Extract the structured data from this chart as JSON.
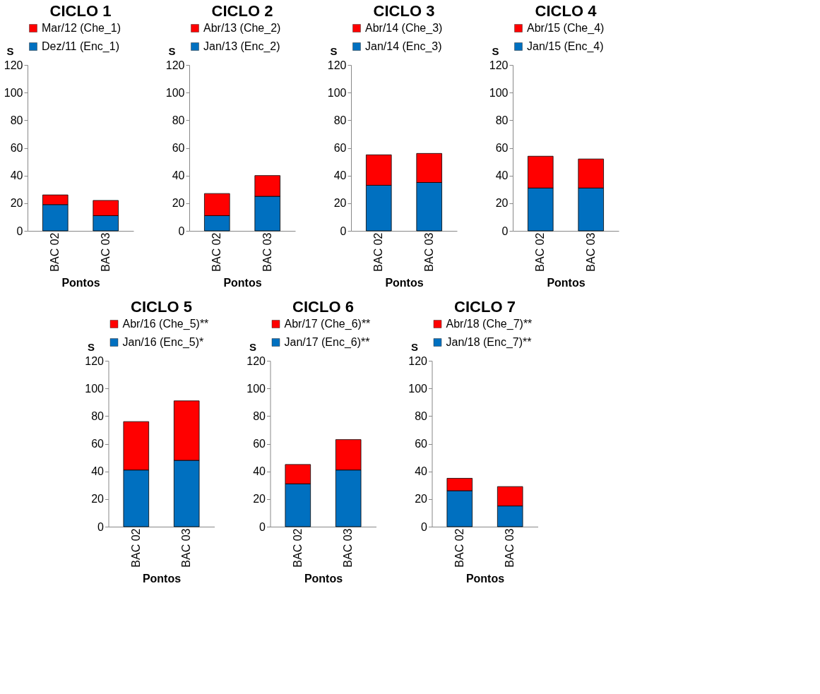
{
  "chart_data": [
    {
      "type": "bar",
      "stacked": true,
      "title": "CICLO 1",
      "xlabel": "Pontos",
      "ylabel": "S",
      "categories": [
        "BAC 02",
        "BAC 03"
      ],
      "ylim": [
        0,
        120
      ],
      "yticks": [
        0,
        20,
        40,
        60,
        80,
        100,
        120
      ],
      "grid": false,
      "legend": "top",
      "series": [
        {
          "name": "Dez/11 (Enc_1)",
          "color": "#0070c0",
          "values": [
            19,
            11
          ]
        },
        {
          "name": "Mar/12 (Che_1)",
          "color": "#ff0000",
          "values": [
            7,
            11
          ]
        }
      ]
    },
    {
      "type": "bar",
      "stacked": true,
      "title": "CICLO 2",
      "xlabel": "Pontos",
      "ylabel": "S",
      "categories": [
        "BAC 02",
        "BAC 03"
      ],
      "ylim": [
        0,
        120
      ],
      "yticks": [
        0,
        20,
        40,
        60,
        80,
        100,
        120
      ],
      "grid": false,
      "legend": "top",
      "series": [
        {
          "name": "Jan/13 (Enc_2)",
          "color": "#0070c0",
          "values": [
            11,
            25
          ]
        },
        {
          "name": "Abr/13 (Che_2)",
          "color": "#ff0000",
          "values": [
            16,
            15
          ]
        }
      ]
    },
    {
      "type": "bar",
      "stacked": true,
      "title": "CICLO 3",
      "xlabel": "Pontos",
      "ylabel": "S",
      "categories": [
        "BAC 02",
        "BAC 03"
      ],
      "ylim": [
        0,
        120
      ],
      "yticks": [
        0,
        20,
        40,
        60,
        80,
        100,
        120
      ],
      "grid": false,
      "legend": "top",
      "series": [
        {
          "name": "Jan/14 (Enc_3)",
          "color": "#0070c0",
          "values": [
            33,
            35
          ]
        },
        {
          "name": "Abr/14 (Che_3)",
          "color": "#ff0000",
          "values": [
            22,
            21
          ]
        }
      ]
    },
    {
      "type": "bar",
      "stacked": true,
      "title": "CICLO 4",
      "xlabel": "Pontos",
      "ylabel": "S",
      "categories": [
        "BAC 02",
        "BAC 03"
      ],
      "ylim": [
        0,
        120
      ],
      "yticks": [
        0,
        20,
        40,
        60,
        80,
        100,
        120
      ],
      "grid": false,
      "legend": "top",
      "series": [
        {
          "name": "Jan/15 (Enc_4)",
          "color": "#0070c0",
          "values": [
            31,
            31
          ]
        },
        {
          "name": "Abr/15 (Che_4)",
          "color": "#ff0000",
          "values": [
            23,
            21
          ]
        }
      ]
    },
    {
      "type": "bar",
      "stacked": true,
      "title": "CICLO 5",
      "xlabel": "Pontos",
      "ylabel": "S",
      "categories": [
        "BAC 02",
        "BAC 03"
      ],
      "ylim": [
        0,
        120
      ],
      "yticks": [
        0,
        20,
        40,
        60,
        80,
        100,
        120
      ],
      "grid": false,
      "legend": "top",
      "series": [
        {
          "name": "Jan/16 (Enc_5)*",
          "color": "#0070c0",
          "values": [
            41,
            48
          ]
        },
        {
          "name": "Abr/16 (Che_5)**",
          "color": "#ff0000",
          "values": [
            35,
            43
          ]
        }
      ]
    },
    {
      "type": "bar",
      "stacked": true,
      "title": "CICLO 6",
      "xlabel": "Pontos",
      "ylabel": "S",
      "categories": [
        "BAC 02",
        "BAC 03"
      ],
      "ylim": [
        0,
        120
      ],
      "yticks": [
        0,
        20,
        40,
        60,
        80,
        100,
        120
      ],
      "grid": false,
      "legend": "top",
      "series": [
        {
          "name": "Jan/17 (Enc_6)**",
          "color": "#0070c0",
          "values": [
            31,
            41
          ]
        },
        {
          "name": "Abr/17 (Che_6)**",
          "color": "#ff0000",
          "values": [
            14,
            22
          ]
        }
      ]
    },
    {
      "type": "bar",
      "stacked": true,
      "title": "CICLO 7",
      "xlabel": "Pontos",
      "ylabel": "S",
      "categories": [
        "BAC 02",
        "BAC 03"
      ],
      "ylim": [
        0,
        120
      ],
      "yticks": [
        0,
        20,
        40,
        60,
        80,
        100,
        120
      ],
      "grid": false,
      "legend": "top",
      "series": [
        {
          "name": "Jan/18 (Enc_7)**",
          "color": "#0070c0",
          "values": [
            26,
            15
          ]
        },
        {
          "name": "Abr/18 (Che_7)**",
          "color": "#ff0000",
          "values": [
            9,
            14
          ]
        }
      ]
    }
  ]
}
